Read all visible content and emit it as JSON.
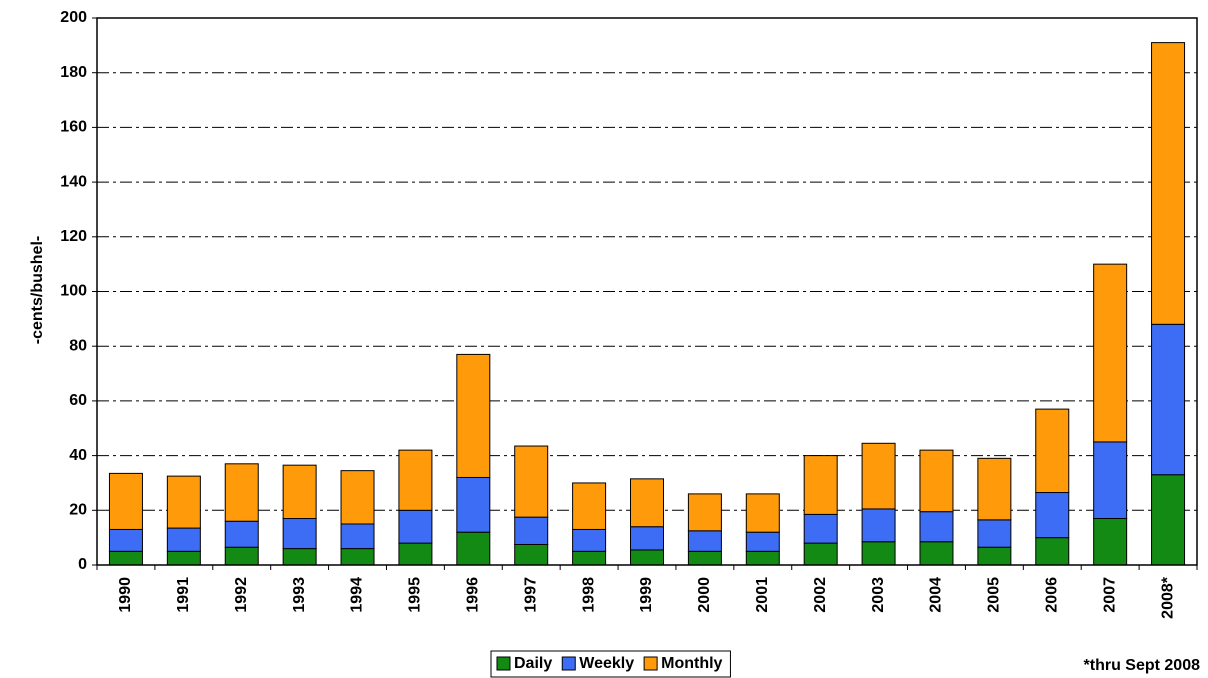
{
  "chart_data": {
    "type": "stacked_bar",
    "y_axis_label": "-cents/bushel-",
    "footnote": "*thru Sept 2008",
    "categories": [
      "1990",
      "1991",
      "1992",
      "1993",
      "1994",
      "1995",
      "1996",
      "1997",
      "1998",
      "1999",
      "2000",
      "2001",
      "2002",
      "2003",
      "2004",
      "2005",
      "2006",
      "2007",
      "2008*"
    ],
    "series": [
      {
        "name": "Daily",
        "color": "#138a13",
        "values": [
          5,
          5,
          6.5,
          6,
          6,
          8,
          12,
          7.5,
          5,
          5.5,
          5,
          5,
          8,
          8.5,
          8.5,
          6.5,
          10,
          17,
          33
        ]
      },
      {
        "name": "Weekly",
        "color": "#3d6cf5",
        "values": [
          8,
          8.5,
          9.5,
          11,
          9,
          12,
          20,
          10,
          8,
          8.5,
          7.5,
          7,
          10.5,
          12,
          11,
          10,
          16.5,
          28,
          55
        ]
      },
      {
        "name": "Monthly",
        "color": "#ff9a0a",
        "values": [
          20.5,
          19,
          21,
          19.5,
          19.5,
          22,
          45,
          26,
          17,
          17.5,
          13.5,
          14,
          21.5,
          24,
          22.5,
          22.5,
          30.5,
          65,
          103
        ]
      }
    ],
    "ylim": [
      0,
      200
    ],
    "yticks": [
      0,
      20,
      40,
      60,
      80,
      100,
      120,
      140,
      160,
      180,
      200
    ],
    "grid": true
  }
}
